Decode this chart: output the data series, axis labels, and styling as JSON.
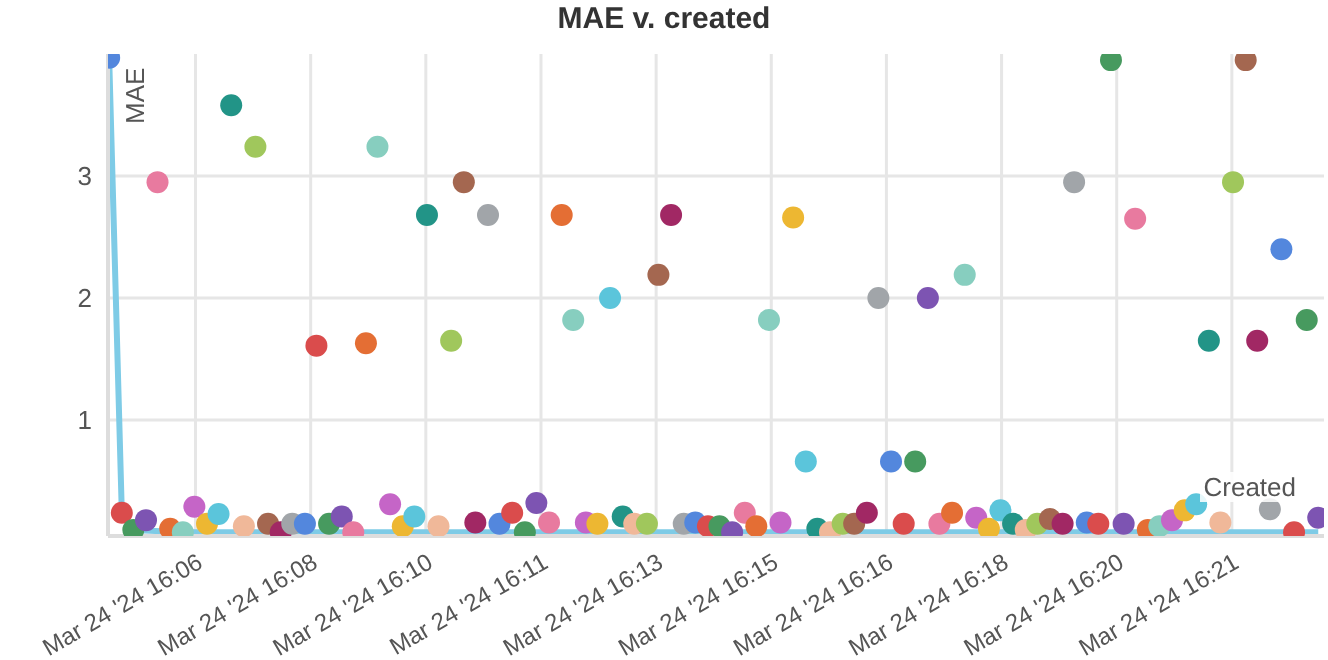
{
  "chart_data": {
    "type": "scatter",
    "title": "MAE v. created",
    "xlabel": "Created",
    "ylabel": "MAE",
    "xlim": [
      "2024-03-24T16:05:24",
      "2024-03-24T16:23:00"
    ],
    "ylim": [
      0.05,
      4
    ],
    "xticks": [
      {
        "value": "2024-03-24T16:06:40",
        "label": "Mar 24 '24 16:06"
      },
      {
        "value": "2024-03-24T16:08:20",
        "label": "Mar 24 '24 16:08"
      },
      {
        "value": "2024-03-24T16:10:00",
        "label": "Mar 24 '24 16:10"
      },
      {
        "value": "2024-03-24T16:11:40",
        "label": "Mar 24 '24 16:11"
      },
      {
        "value": "2024-03-24T16:13:20",
        "label": "Mar 24 '24 16:13"
      },
      {
        "value": "2024-03-24T16:15:00",
        "label": "Mar 24 '24 16:15"
      },
      {
        "value": "2024-03-24T16:16:40",
        "label": "Mar 24 '24 16:16"
      },
      {
        "value": "2024-03-24T16:18:20",
        "label": "Mar 24 '24 16:18"
      },
      {
        "value": "2024-03-24T16:20:00",
        "label": "Mar 24 '24 16:20"
      },
      {
        "value": "2024-03-24T16:21:40",
        "label": "Mar 24 '24 16:21"
      }
    ],
    "yticks": [
      1,
      2,
      3
    ],
    "grid": true,
    "marker": "circle",
    "series": [
      {
        "type": "line",
        "color": "#7ecbe6",
        "marker": "none",
        "x": [
          "2024-03-24T16:05:25",
          "2024-03-24T16:05:36",
          "2024-03-24T16:05:46",
          "2024-03-24T16:06:29",
          "2024-03-24T16:22:55"
        ],
        "values": [
          3.97,
          0.24,
          0.1,
          0.08,
          0.08
        ]
      },
      {
        "x": [
          "2024-03-24T16:05:25",
          "2024-03-24T16:05:36",
          "2024-03-24T16:05:46",
          "2024-03-24T16:05:57",
          "2024-03-24T16:06:07",
          "2024-03-24T16:06:18",
          "2024-03-24T16:06:29",
          "2024-03-24T16:06:39",
          "2024-03-24T16:06:50",
          "2024-03-24T16:07:00",
          "2024-03-24T16:07:11",
          "2024-03-24T16:07:22",
          "2024-03-24T16:07:32",
          "2024-03-24T16:07:43",
          "2024-03-24T16:07:54",
          "2024-03-24T16:08:04",
          "2024-03-24T16:08:15",
          "2024-03-24T16:08:25",
          "2024-03-24T16:08:36",
          "2024-03-24T16:08:47",
          "2024-03-24T16:08:57",
          "2024-03-24T16:09:08",
          "2024-03-24T16:09:18",
          "2024-03-24T16:09:29",
          "2024-03-24T16:09:40",
          "2024-03-24T16:09:50",
          "2024-03-24T16:10:01",
          "2024-03-24T16:10:11",
          "2024-03-24T16:10:22",
          "2024-03-24T16:10:33",
          "2024-03-24T16:10:43",
          "2024-03-24T16:10:54",
          "2024-03-24T16:11:04",
          "2024-03-24T16:11:15",
          "2024-03-24T16:11:26",
          "2024-03-24T16:11:36",
          "2024-03-24T16:11:47",
          "2024-03-24T16:11:58",
          "2024-03-24T16:12:08",
          "2024-03-24T16:12:19",
          "2024-03-24T16:12:29",
          "2024-03-24T16:12:40",
          "2024-03-24T16:12:51",
          "2024-03-24T16:13:01",
          "2024-03-24T16:13:12",
          "2024-03-24T16:13:22",
          "2024-03-24T16:13:33",
          "2024-03-24T16:13:44",
          "2024-03-24T16:13:54",
          "2024-03-24T16:14:05",
          "2024-03-24T16:14:15",
          "2024-03-24T16:14:26",
          "2024-03-24T16:14:37",
          "2024-03-24T16:14:47",
          "2024-03-24T16:14:58",
          "2024-03-24T16:15:08",
          "2024-03-24T16:15:19",
          "2024-03-24T16:15:30",
          "2024-03-24T16:15:40",
          "2024-03-24T16:15:51",
          "2024-03-24T16:16:02",
          "2024-03-24T16:16:12",
          "2024-03-24T16:16:23",
          "2024-03-24T16:16:33",
          "2024-03-24T16:16:44",
          "2024-03-24T16:16:55",
          "2024-03-24T16:17:05",
          "2024-03-24T16:17:16",
          "2024-03-24T16:17:26",
          "2024-03-24T16:17:37",
          "2024-03-24T16:17:48",
          "2024-03-24T16:17:58",
          "2024-03-24T16:18:09",
          "2024-03-24T16:18:19",
          "2024-03-24T16:18:30",
          "2024-03-24T16:18:41",
          "2024-03-24T16:18:51",
          "2024-03-24T16:19:02",
          "2024-03-24T16:19:13",
          "2024-03-24T16:19:23",
          "2024-03-24T16:19:34",
          "2024-03-24T16:19:44",
          "2024-03-24T16:19:55",
          "2024-03-24T16:20:06",
          "2024-03-24T16:20:16",
          "2024-03-24T16:20:27",
          "2024-03-24T16:20:37",
          "2024-03-24T16:20:48",
          "2024-03-24T16:20:59",
          "2024-03-24T16:21:09",
          "2024-03-24T16:21:20",
          "2024-03-24T16:21:30",
          "2024-03-24T16:21:41",
          "2024-03-24T16:21:52",
          "2024-03-24T16:22:02",
          "2024-03-24T16:22:13",
          "2024-03-24T16:22:23",
          "2024-03-24T16:22:34",
          "2024-03-24T16:22:45",
          "2024-03-24T16:22:55"
        ],
        "values": [
          3.97,
          0.24,
          0.1,
          0.18,
          2.95,
          0.11,
          0.08,
          0.29,
          0.15,
          0.23,
          3.58,
          0.13,
          3.24,
          0.15,
          0.08,
          0.15,
          0.15,
          1.61,
          0.15,
          0.21,
          0.08,
          1.63,
          3.24,
          0.31,
          0.13,
          0.21,
          2.68,
          0.13,
          1.65,
          2.95,
          0.16,
          2.68,
          0.15,
          0.24,
          0.08,
          0.32,
          0.16,
          2.68,
          1.82,
          0.16,
          0.15,
          2.0,
          0.21,
          0.15,
          0.15,
          2.19,
          2.68,
          0.15,
          0.16,
          0.13,
          0.13,
          0.08,
          0.24,
          0.13,
          1.82,
          0.16,
          2.66,
          0.66,
          0.11,
          0.08,
          0.15,
          0.15,
          0.24,
          2.0,
          0.66,
          0.15,
          0.66,
          2.0,
          0.15,
          0.24,
          2.19,
          0.2,
          0.11,
          0.26,
          0.15,
          0.1,
          0.15,
          0.19,
          0.15,
          2.95,
          0.16,
          0.15,
          3.95,
          0.15,
          2.65,
          0.1,
          0.13,
          0.18,
          0.26,
          0.31,
          1.65,
          0.16,
          2.95,
          3.95,
          1.65,
          0.27,
          2.4,
          0.08,
          1.82,
          0.2
        ],
        "colors": [
          "#5387dd",
          "#da4c4c",
          "#479a5f",
          "#7d54b2",
          "#e87a9f",
          "#e46e34",
          "#87cebf",
          "#c565c7",
          "#edb732",
          "#5bc5db",
          "#229487",
          "#f0b899",
          "#a0c75c",
          "#a46750",
          "#a12864",
          "#a1a5a9",
          "#5387dd",
          "#da4c4c",
          "#479a5f",
          "#7d54b2",
          "#e87a9f",
          "#e46e34",
          "#87cebf",
          "#c565c7",
          "#edb732",
          "#5bc5db",
          "#229487",
          "#f0b899",
          "#a0c75c",
          "#a46750",
          "#a12864",
          "#a1a5a9",
          "#5387dd",
          "#da4c4c",
          "#479a5f",
          "#7d54b2",
          "#e87a9f",
          "#e46e34",
          "#87cebf",
          "#c565c7",
          "#edb732",
          "#5bc5db",
          "#229487",
          "#f0b899",
          "#a0c75c",
          "#a46750",
          "#a12864",
          "#a1a5a9",
          "#5387dd",
          "#da4c4c",
          "#479a5f",
          "#7d54b2",
          "#e87a9f",
          "#e46e34",
          "#87cebf",
          "#c565c7",
          "#edb732",
          "#5bc5db",
          "#229487",
          "#f0b899",
          "#a0c75c",
          "#a46750",
          "#a12864",
          "#a1a5a9",
          "#5387dd",
          "#da4c4c",
          "#479a5f",
          "#7d54b2",
          "#e87a9f",
          "#e46e34",
          "#87cebf",
          "#c565c7",
          "#edb732",
          "#5bc5db",
          "#229487",
          "#f0b899",
          "#a0c75c",
          "#a46750",
          "#a12864",
          "#a1a5a9",
          "#5387dd",
          "#da4c4c",
          "#479a5f",
          "#7d54b2",
          "#e87a9f",
          "#e46e34",
          "#87cebf",
          "#c565c7",
          "#edb732",
          "#5bc5db",
          "#229487",
          "#f0b899",
          "#a0c75c",
          "#a46750",
          "#a12864",
          "#a1a5a9",
          "#5387dd",
          "#da4c4c",
          "#479a5f",
          "#7d54b2"
        ]
      }
    ]
  }
}
